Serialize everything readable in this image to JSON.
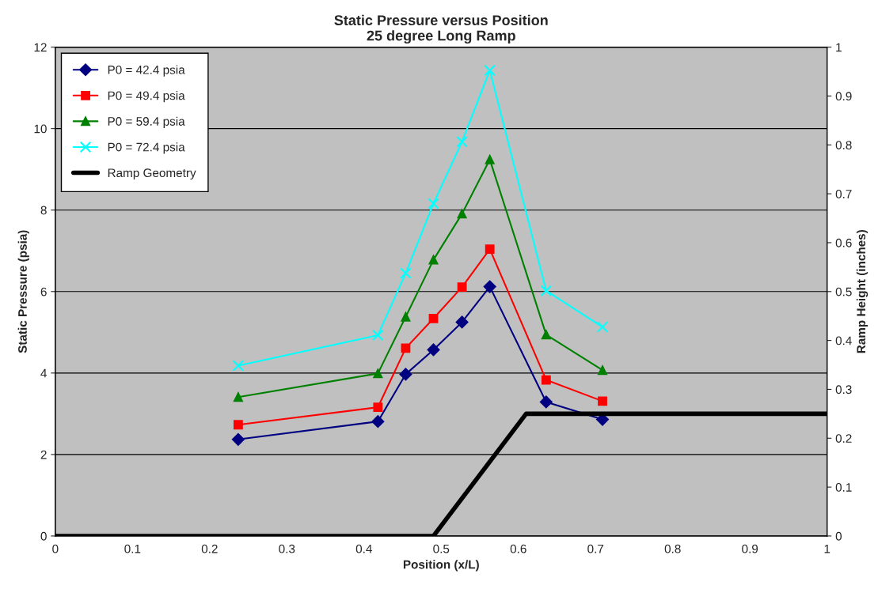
{
  "chart_data": {
    "type": "line",
    "title": "Static Pressure versus Position\n25 degree Long Ramp",
    "xlabel": "Position (x/L)",
    "ylabel": "Static Pressure (psia)",
    "y2label": "Ramp Height (inches)",
    "x": [
      0.237,
      0.418,
      0.454,
      0.49,
      0.527,
      0.563,
      0.636,
      0.709
    ],
    "series": [
      {
        "name": "P0 = 42.4 psia",
        "color": "#000080",
        "marker": "diamond",
        "values": [
          2.37,
          2.81,
          3.97,
          4.57,
          5.25,
          6.12,
          3.29,
          2.86
        ]
      },
      {
        "name": "P0 = 49.4 psia",
        "color": "#ff0000",
        "marker": "square",
        "values": [
          2.73,
          3.16,
          4.61,
          5.34,
          6.11,
          7.04,
          3.83,
          3.31
        ]
      },
      {
        "name": "P0 = 59.4 psia",
        "color": "#008000",
        "marker": "triangle",
        "values": [
          3.41,
          3.99,
          5.38,
          6.78,
          7.91,
          9.24,
          4.94,
          4.07
        ]
      },
      {
        "name": "P0 = 72.4 psia",
        "color": "#00ffff",
        "marker": "cross",
        "values": [
          4.18,
          4.93,
          6.45,
          8.16,
          9.68,
          11.43,
          6.02,
          5.13
        ]
      },
      {
        "name": "Ramp Geometry",
        "color": "#000000",
        "marker": "none",
        "axis": "y2",
        "x": [
          0,
          0.49,
          0.61,
          1
        ],
        "values": [
          0,
          0,
          0.25,
          0.25
        ]
      }
    ],
    "xlim": [
      0,
      1
    ],
    "xticks": [
      0,
      0.1,
      0.2,
      0.3,
      0.4,
      0.5,
      0.6,
      0.7,
      0.8,
      0.9,
      1
    ],
    "ylim": [
      0,
      12
    ],
    "yticks": [
      0,
      2,
      4,
      6,
      8,
      10,
      12
    ],
    "y2lim": [
      0,
      1
    ],
    "y2ticks": [
      0,
      0.1,
      0.2,
      0.3,
      0.4,
      0.5,
      0.6,
      0.7,
      0.8,
      0.9,
      1
    ],
    "grid": "y",
    "legend": "top left"
  }
}
